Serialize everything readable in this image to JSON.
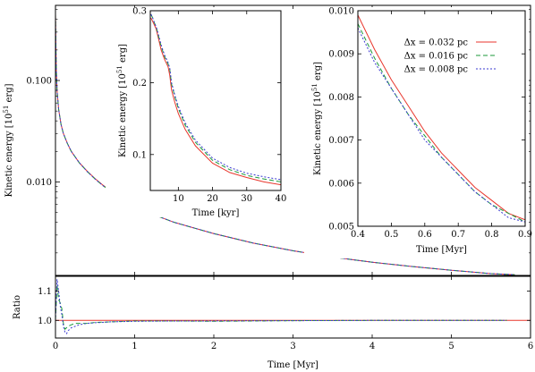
{
  "chart_data": [
    {
      "id": "main",
      "type": "line",
      "xlim": [
        0,
        6
      ],
      "ylim": [
        0.0012,
        0.55
      ],
      "yscale": "log",
      "xlabel": "",
      "ylabel": "Kinetic energy [10^51 erg]",
      "xticks": [
        0,
        1,
        2,
        3,
        4,
        5,
        6
      ],
      "yticks": [
        {
          "value": 0.01,
          "label": "0.010"
        },
        {
          "value": 0.1,
          "label": "0.100"
        }
      ],
      "series": [
        {
          "name": "dx032",
          "color": "#e8362c",
          "dash": "",
          "x": [
            0.0,
            0.003,
            0.006,
            0.01,
            0.02,
            0.04,
            0.07,
            0.1,
            0.15,
            0.2,
            0.3,
            0.4,
            0.5,
            0.6,
            0.7,
            0.8,
            0.9,
            1.0,
            1.2,
            1.5,
            2.0,
            2.5,
            3.0,
            3.5,
            4.0,
            4.5,
            5.0,
            5.5,
            5.8
          ],
          "y": [
            0.45,
            0.3,
            0.2,
            0.13,
            0.08,
            0.052,
            0.037,
            0.03,
            0.024,
            0.02,
            0.0155,
            0.0128,
            0.0108,
            0.0093,
            0.0081,
            0.0072,
            0.0064,
            0.0058,
            0.0049,
            0.004,
            0.0031,
            0.0025,
            0.0021,
            0.00182,
            0.00162,
            0.00147,
            0.00135,
            0.00125,
            0.00122
          ]
        },
        {
          "name": "dx016",
          "color": "#1b9a3a",
          "dash": "5,3",
          "x": [
            0.0,
            0.003,
            0.006,
            0.01,
            0.02,
            0.04,
            0.07,
            0.1,
            0.15,
            0.2,
            0.3,
            0.4,
            0.5,
            0.6,
            0.7,
            0.8,
            0.9,
            1.0,
            1.2,
            1.5,
            2.0,
            2.5,
            3.0,
            3.5,
            4.0,
            4.5,
            5.0,
            5.5,
            5.8
          ],
          "y": [
            0.45,
            0.3,
            0.2,
            0.13,
            0.08,
            0.052,
            0.037,
            0.03,
            0.024,
            0.02,
            0.0155,
            0.0127,
            0.0107,
            0.0092,
            0.0081,
            0.0072,
            0.0064,
            0.0058,
            0.0049,
            0.004,
            0.0031,
            0.0025,
            0.0021,
            0.00182,
            0.00162,
            0.00147,
            0.00135,
            0.00125,
            0.00122
          ]
        },
        {
          "name": "dx008",
          "color": "#3a3ad0",
          "dash": "2,2",
          "x": [
            0.0,
            0.003,
            0.006,
            0.01,
            0.02,
            0.04,
            0.07,
            0.1,
            0.15,
            0.2,
            0.3,
            0.4,
            0.5,
            0.6,
            0.7,
            0.8,
            0.9,
            1.0,
            1.2,
            1.5,
            2.0,
            2.5,
            3.0,
            3.5,
            4.0,
            4.5,
            5.0,
            5.5,
            5.8
          ],
          "y": [
            0.45,
            0.3,
            0.2,
            0.13,
            0.08,
            0.052,
            0.037,
            0.03,
            0.024,
            0.02,
            0.0155,
            0.0127,
            0.0107,
            0.0092,
            0.0081,
            0.0072,
            0.0064,
            0.0058,
            0.0049,
            0.004,
            0.0031,
            0.0025,
            0.0021,
            0.00182,
            0.00162,
            0.00147,
            0.00135,
            0.00125,
            0.00122
          ]
        }
      ]
    },
    {
      "id": "ratio",
      "type": "line",
      "xlim": [
        0,
        6
      ],
      "ylim": [
        0.94,
        1.15
      ],
      "xlabel": "Time [Myr]",
      "ylabel": "Ratio",
      "xticks": [
        0,
        1,
        2,
        3,
        4,
        5,
        6
      ],
      "yticks": [
        {
          "value": 1.0,
          "label": "1.0"
        },
        {
          "value": 1.1,
          "label": "1.1"
        }
      ],
      "series": [
        {
          "name": "dx032",
          "color": "#e8362c",
          "dash": "",
          "x": [
            0,
            6
          ],
          "y": [
            1.0,
            1.0
          ]
        },
        {
          "name": "dx016",
          "color": "#1b9a3a",
          "dash": "5,3",
          "x": [
            0.0,
            0.02,
            0.04,
            0.06,
            0.08,
            0.1,
            0.12,
            0.14,
            0.16,
            0.2,
            0.25,
            0.3,
            0.4,
            0.5,
            0.7,
            1.0,
            1.5,
            2.0,
            3.0,
            4.0,
            5.0,
            5.7
          ],
          "y": [
            1.0,
            1.12,
            1.07,
            1.06,
            1.04,
            0.99,
            0.97,
            0.975,
            0.98,
            0.985,
            0.99,
            0.99,
            0.99,
            0.993,
            0.995,
            0.998,
            0.998,
            0.997,
            0.999,
            1.0,
            1.0,
            1.0
          ]
        },
        {
          "name": "dx008",
          "color": "#3a3ad0",
          "dash": "2,2",
          "x": [
            0.0,
            0.02,
            0.04,
            0.06,
            0.08,
            0.1,
            0.12,
            0.14,
            0.16,
            0.2,
            0.25,
            0.3,
            0.4,
            0.5,
            0.7,
            1.0,
            1.5,
            2.0,
            3.0,
            4.0,
            5.0,
            5.7
          ],
          "y": [
            1.0,
            1.14,
            1.1,
            1.05,
            1.02,
            0.98,
            0.96,
            0.955,
            0.965,
            0.975,
            0.98,
            0.985,
            0.99,
            0.992,
            0.995,
            0.997,
            0.998,
            0.998,
            0.999,
            1.0,
            1.0,
            1.0
          ]
        }
      ]
    },
    {
      "id": "inset1",
      "type": "line",
      "xlim": [
        1.8,
        40
      ],
      "ylim": [
        0.05,
        0.3
      ],
      "xlabel": "Time [kyr]",
      "ylabel": "Kinetic energy [10^51 erg]",
      "xticks": [
        10,
        20,
        30,
        40
      ],
      "yticks": [
        {
          "value": 0.1,
          "label": "0.1"
        },
        {
          "value": 0.2,
          "label": "0.2"
        },
        {
          "value": 0.3,
          "label": "0.3"
        }
      ],
      "series": [
        {
          "name": "dx032",
          "color": "#e8362c",
          "dash": "",
          "x": [
            2.0,
            2.5,
            3.0,
            3.5,
            4.0,
            5.0,
            6.0,
            7.0,
            7.5,
            8.0,
            9.0,
            10,
            12,
            15,
            20,
            25,
            30,
            35,
            40
          ],
          "y": [
            0.29,
            0.285,
            0.28,
            0.275,
            0.265,
            0.245,
            0.232,
            0.222,
            0.21,
            0.19,
            0.172,
            0.157,
            0.135,
            0.112,
            0.088,
            0.075,
            0.068,
            0.062,
            0.058
          ]
        },
        {
          "name": "dx016",
          "color": "#1b9a3a",
          "dash": "5,3",
          "x": [
            2.0,
            2.5,
            3.0,
            3.5,
            4.0,
            5.0,
            6.0,
            7.0,
            7.5,
            8.0,
            9.0,
            10,
            12,
            15,
            20,
            25,
            30,
            35,
            40
          ],
          "y": [
            0.295,
            0.29,
            0.283,
            0.278,
            0.268,
            0.25,
            0.236,
            0.226,
            0.218,
            0.198,
            0.18,
            0.164,
            0.141,
            0.117,
            0.092,
            0.079,
            0.071,
            0.066,
            0.062
          ]
        },
        {
          "name": "dx008",
          "color": "#3a3ad0",
          "dash": "2,2",
          "x": [
            2.0,
            2.5,
            3.0,
            3.5,
            4.0,
            5.0,
            6.0,
            7.0,
            7.5,
            8.0,
            9.0,
            10,
            12,
            15,
            20,
            25,
            30,
            35,
            40
          ],
          "y": [
            0.295,
            0.29,
            0.283,
            0.278,
            0.27,
            0.252,
            0.238,
            0.228,
            0.22,
            0.2,
            0.182,
            0.167,
            0.144,
            0.12,
            0.095,
            0.082,
            0.074,
            0.069,
            0.065
          ]
        }
      ]
    },
    {
      "id": "inset2",
      "type": "line",
      "xlim": [
        0.4,
        0.9
      ],
      "ylim": [
        0.005,
        0.01
      ],
      "xlabel": "Time [Myr]",
      "ylabel": "Kinetic energy [10^51 erg]",
      "xticks": [
        {
          "value": 0.4,
          "label": "0.4"
        },
        {
          "value": 0.5,
          "label": "0.5"
        },
        {
          "value": 0.6,
          "label": "0.6"
        },
        {
          "value": 0.7,
          "label": "0.7"
        },
        {
          "value": 0.8,
          "label": "0.8"
        },
        {
          "value": 0.9,
          "label": "0.9"
        }
      ],
      "yticks": [
        {
          "value": 0.005,
          "label": "0.005"
        },
        {
          "value": 0.006,
          "label": "0.006"
        },
        {
          "value": 0.007,
          "label": "0.007"
        },
        {
          "value": 0.008,
          "label": "0.008"
        },
        {
          "value": 0.009,
          "label": "0.009"
        },
        {
          "value": 0.01,
          "label": "0.010"
        }
      ],
      "legend": {
        "placement": "top-right",
        "entries": [
          "Δx = 0.032 pc",
          "Δx = 0.016 pc",
          "Δx = 0.008 pc"
        ]
      },
      "series": [
        {
          "name": "dx032",
          "color": "#e8362c",
          "dash": "",
          "x": [
            0.4,
            0.45,
            0.5,
            0.55,
            0.6,
            0.65,
            0.7,
            0.75,
            0.8,
            0.85,
            0.9
          ],
          "y": [
            0.0099,
            0.0091,
            0.0084,
            0.0078,
            0.0072,
            0.0067,
            0.0063,
            0.0059,
            0.0056,
            0.0053,
            0.00515
          ]
        },
        {
          "name": "dx016",
          "color": "#1b9a3a",
          "dash": "5,3",
          "x": [
            0.4,
            0.45,
            0.5,
            0.55,
            0.6,
            0.65,
            0.7,
            0.75,
            0.8,
            0.85,
            0.9
          ],
          "y": [
            0.0097,
            0.0089,
            0.0082,
            0.0076,
            0.0071,
            0.0066,
            0.0062,
            0.0058,
            0.0055,
            0.0053,
            0.0051
          ]
        },
        {
          "name": "dx008",
          "color": "#3a3ad0",
          "dash": "2,2",
          "x": [
            0.4,
            0.45,
            0.5,
            0.55,
            0.6,
            0.65,
            0.7,
            0.75,
            0.8,
            0.85,
            0.9
          ],
          "y": [
            0.0096,
            0.0088,
            0.0082,
            0.0076,
            0.007,
            0.0066,
            0.0062,
            0.0058,
            0.0055,
            0.0052,
            0.0051
          ]
        }
      ]
    }
  ]
}
